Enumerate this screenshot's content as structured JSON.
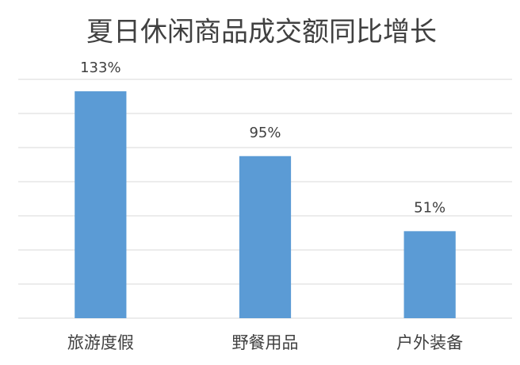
{
  "chart_data": {
    "type": "bar",
    "title": "夏日休闲商品成交额同比增长",
    "categories": [
      "旅游度假",
      "野餐用品",
      "户外装备"
    ],
    "values": [
      133,
      95,
      51
    ],
    "value_labels": [
      "133%",
      "95%",
      "51%"
    ],
    "color": "#5b9bd5",
    "ylim": [
      0,
      140
    ],
    "yticks": [
      0,
      20,
      40,
      60,
      80,
      100,
      120,
      140
    ],
    "grid": true
  }
}
